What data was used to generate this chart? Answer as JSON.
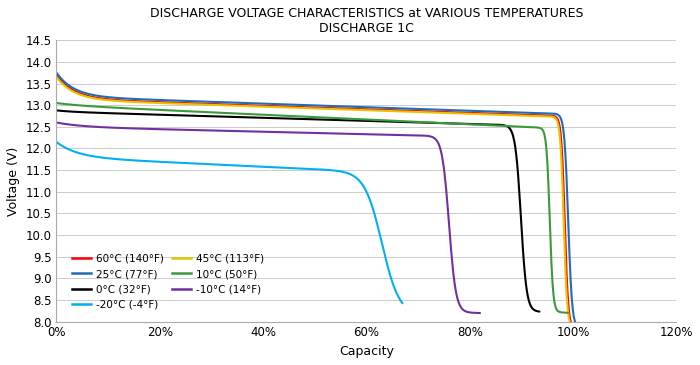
{
  "title_line1": "DISCHARGE VOLTAGE CHARACTERISTICS at VARIOUS TEMPERATURES",
  "title_line2": "DISCHARGE 1C",
  "xlabel": "Capacity",
  "ylabel": "Voltage (V)",
  "xlim": [
    0.0,
    1.2
  ],
  "ylim": [
    8.0,
    14.5
  ],
  "yticks": [
    8.0,
    8.5,
    9.0,
    9.5,
    10.0,
    10.5,
    11.0,
    11.5,
    12.0,
    12.5,
    13.0,
    13.5,
    14.0,
    14.5
  ],
  "xticks": [
    0.0,
    0.2,
    0.4,
    0.6,
    0.8,
    1.0,
    1.2
  ],
  "background_color": "#ffffff",
  "grid_color": "#cccccc",
  "legend_entries": [
    {
      "label": "60°C (140°F)",
      "color": "#ff0000"
    },
    {
      "label": "25°C (77°F)",
      "color": "#1f6db5"
    },
    {
      "label": "0°C (32°F)",
      "color": "#000000"
    },
    {
      " label": "-20°C (-4°F)",
      "color": "#00b0f0"
    },
    {
      "label": "45°C (113°F)",
      "color": "#e8c400"
    },
    {
      "label": "10°C (50°F)",
      "color": "#3a9a3a"
    },
    {
      "label": "-10°C (14°F)",
      "color": "#7030a0"
    }
  ]
}
